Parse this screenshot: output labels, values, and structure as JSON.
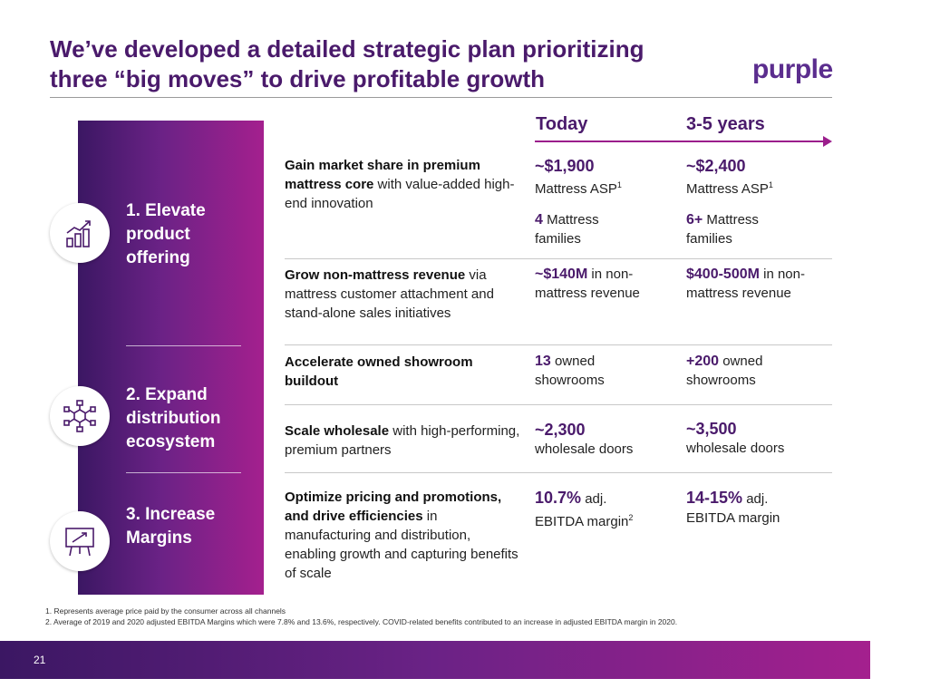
{
  "header": {
    "title_line1": "We’ve developed a detailed strategic plan prioritizing",
    "title_line2": "three “big moves” to drive profitable growth",
    "logo": "purple"
  },
  "columns": {
    "today": "Today",
    "future": "3-5 years"
  },
  "moves": [
    {
      "label": "1. Elevate product offering",
      "icon": "growth-chart-icon"
    },
    {
      "label": "2. Expand distribution ecosystem",
      "icon": "network-icon"
    },
    {
      "label": "3. Increase Margins",
      "icon": "presentation-board-icon"
    }
  ],
  "rows": [
    {
      "desc_bold": "Gain market share in premium mattress core",
      "desc_rest": " with value-added high-end innovation",
      "today_a_bold": "~$1,900",
      "today_a_rest": "Mattress ASP",
      "today_a_sup": "1",
      "today_b_bold": "4",
      "today_b_rest": " Mattress families",
      "future_a_bold": "~$2,400",
      "future_a_rest": "Mattress ASP",
      "future_a_sup": "1",
      "future_b_bold": "6+",
      "future_b_rest": " Mattress families"
    },
    {
      "desc_bold": "Grow non-mattress revenue",
      "desc_rest": " via mattress customer attachment and stand-alone sales initiatives",
      "today_bold": "~$140M",
      "today_rest": " in non-mattress revenue",
      "future_bold": "$400-500M",
      "future_rest": " in non-mattress revenue"
    },
    {
      "desc_bold": "Accelerate owned showroom buildout",
      "desc_rest": "",
      "today_bold": "13",
      "today_rest": " owned showrooms",
      "future_bold": "+200",
      "future_rest": " owned showrooms"
    },
    {
      "desc_bold": "Scale wholesale",
      "desc_rest": " with high-performing, premium partners",
      "today_bold": "~2,300",
      "today_rest": "wholesale doors",
      "future_bold": "~3,500",
      "future_rest": "wholesale doors"
    },
    {
      "desc_bold": "Optimize pricing and promotions, and drive efficiencies",
      "desc_rest": " in manufacturing and distribution, enabling growth and capturing benefits of scale",
      "today_bold": "10.7%",
      "today_rest": " adj. EBITDA margin",
      "today_sup": "2",
      "future_bold": "14-15%",
      "future_rest": " adj. EBITDA margin"
    }
  ],
  "footnotes": [
    "1. Represents average price paid by the consumer across all channels",
    "2. Average of 2019 and 2020 adjusted EBITDA Margins which were 7.8% and 13.6%, respectively. COVID-related benefits contributed to an increase in adjusted EBITDA margin in 2020."
  ],
  "page_number": "21",
  "colors": {
    "primary": "#4a1a6b",
    "accent": "#9b1e8c",
    "band_start": "#3b1763",
    "band_end": "#a4208e"
  }
}
